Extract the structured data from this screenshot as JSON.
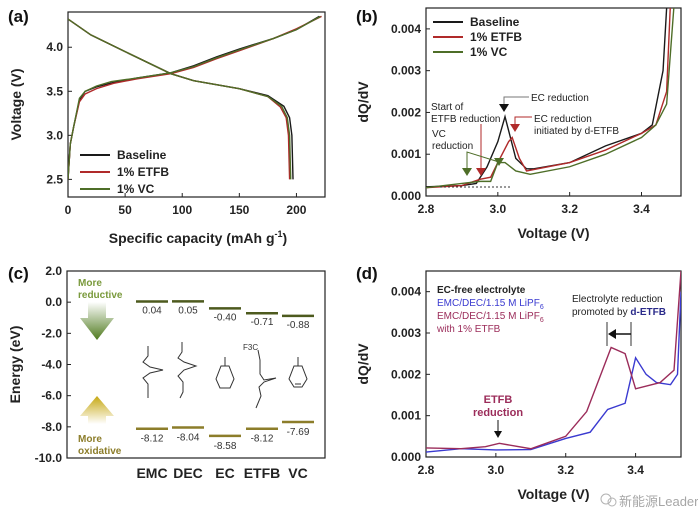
{
  "panel_labels": [
    "(a)",
    "(b)",
    "(c)",
    "(d)"
  ],
  "watermark": "新能源Leader",
  "chart_data": [
    {
      "type": "line",
      "panel": "(a)",
      "xlabel": "Specific capacity (mAh g-1)",
      "xlabel_main": "Specific capacity (mAh g",
      "xlabel_sup": "-1",
      "xlabel_end": ")",
      "ylabel": "Voltage (V)",
      "xlim": [
        0,
        225
      ],
      "ylim": [
        2.3,
        4.4
      ],
      "xticks": [
        0,
        50,
        100,
        150,
        200
      ],
      "yticks": [
        2.5,
        3.0,
        3.5,
        4.0
      ],
      "xtick_labels": [
        "0",
        "50",
        "100",
        "150",
        "200"
      ],
      "ytick_labels": [
        "2.5",
        "3.0",
        "3.5",
        "4.0"
      ],
      "legend": "bottom-left",
      "series": [
        {
          "name": "Baseline",
          "color": "#1a1a1a",
          "segments": [
            [
              [
                0,
                2.5
              ],
              [
                2,
                2.9
              ],
              [
                5,
                3.1
              ],
              [
                10,
                3.4
              ],
              [
                15,
                3.5
              ],
              [
                25,
                3.55
              ],
              [
                40,
                3.6
              ],
              [
                60,
                3.65
              ],
              [
                90,
                3.71
              ],
              [
                110,
                3.79
              ],
              [
                130,
                3.89
              ],
              [
                150,
                3.98
              ],
              [
                180,
                4.1
              ],
              [
                200,
                4.2
              ],
              [
                220,
                4.35
              ]
            ],
            [
              [
                0,
                4.32
              ],
              [
                20,
                4.14
              ],
              [
                50,
                3.95
              ],
              [
                90,
                3.7
              ],
              [
                110,
                3.62
              ],
              [
                150,
                3.53
              ],
              [
                175,
                3.45
              ],
              [
                189,
                3.33
              ],
              [
                194,
                3.2
              ],
              [
                196,
                3.0
              ],
              [
                197,
                2.5
              ]
            ]
          ]
        },
        {
          "name": "1% ETFB",
          "color": "#b02a2a",
          "segments": [
            [
              [
                0,
                2.5
              ],
              [
                2,
                2.9
              ],
              [
                5,
                3.1
              ],
              [
                10,
                3.38
              ],
              [
                15,
                3.47
              ],
              [
                25,
                3.53
              ],
              [
                40,
                3.59
              ],
              [
                60,
                3.64
              ],
              [
                90,
                3.7
              ],
              [
                110,
                3.77
              ],
              [
                130,
                3.87
              ],
              [
                150,
                3.96
              ],
              [
                180,
                4.1
              ],
              [
                200,
                4.21
              ],
              [
                222,
                4.35
              ]
            ],
            [
              [
                0,
                4.32
              ],
              [
                20,
                4.14
              ],
              [
                50,
                3.95
              ],
              [
                90,
                3.7
              ],
              [
                110,
                3.62
              ],
              [
                150,
                3.53
              ],
              [
                175,
                3.44
              ],
              [
                186,
                3.32
              ],
              [
                191,
                3.2
              ],
              [
                193,
                3.0
              ],
              [
                194,
                2.5
              ]
            ]
          ]
        },
        {
          "name": "1% VC",
          "color": "#4e6e28",
          "segments": [
            [
              [
                0,
                2.5
              ],
              [
                2,
                2.9
              ],
              [
                5,
                3.1
              ],
              [
                10,
                3.42
              ],
              [
                15,
                3.5
              ],
              [
                25,
                3.56
              ],
              [
                38,
                3.61
              ],
              [
                60,
                3.65
              ],
              [
                90,
                3.71
              ],
              [
                110,
                3.78
              ],
              [
                130,
                3.88
              ],
              [
                150,
                3.97
              ],
              [
                180,
                4.1
              ],
              [
                200,
                4.2
              ],
              [
                221,
                4.35
              ]
            ],
            [
              [
                0,
                4.32
              ],
              [
                20,
                4.14
              ],
              [
                50,
                3.95
              ],
              [
                90,
                3.7
              ],
              [
                110,
                3.62
              ],
              [
                150,
                3.53
              ],
              [
                175,
                3.44
              ],
              [
                187,
                3.33
              ],
              [
                192,
                3.2
              ],
              [
                194,
                3.0
              ],
              [
                195,
                2.5
              ]
            ]
          ]
        }
      ]
    },
    {
      "type": "line",
      "panel": "(b)",
      "xlabel": "Voltage (V)",
      "ylabel": "dQ/dV",
      "xlim": [
        2.8,
        3.51
      ],
      "ylim": [
        0,
        0.0045
      ],
      "xticks": [
        2.8,
        3.0,
        3.2,
        3.4
      ],
      "yticks": [
        0,
        0.001,
        0.002,
        0.003,
        0.004
      ],
      "xtick_labels": [
        "2.8",
        "3.0",
        "3.2",
        "3.4"
      ],
      "ytick_labels": [
        "0.000",
        "0.001",
        "0.002",
        "0.003",
        "0.004"
      ],
      "legend": "top-left",
      "series": [
        {
          "name": "Baseline",
          "color": "#1a1a1a",
          "segments": [
            [
              [
                2.8,
                0.00022
              ],
              [
                2.9,
                0.00025
              ],
              [
                2.94,
                0.0003
              ],
              [
                2.97,
                0.0007
              ],
              [
                3.0,
                0.0013
              ],
              [
                3.02,
                0.0019
              ],
              [
                3.05,
                0.0009
              ],
              [
                3.08,
                0.00065
              ],
              [
                3.1,
                0.00065
              ],
              [
                3.2,
                0.0008
              ],
              [
                3.3,
                0.0012
              ],
              [
                3.4,
                0.0015
              ],
              [
                3.43,
                0.0017
              ],
              [
                3.46,
                0.003
              ],
              [
                3.47,
                0.0045
              ]
            ]
          ]
        },
        {
          "name": "1% ETFB",
          "color": "#b02a2a",
          "segments": [
            [
              [
                2.8,
                0.0002
              ],
              [
                2.9,
                0.00025
              ],
              [
                2.95,
                0.0004
              ],
              [
                2.98,
                0.00045
              ],
              [
                3.0,
                0.0008
              ],
              [
                3.03,
                0.0013
              ],
              [
                3.04,
                0.0014
              ],
              [
                3.06,
                0.0009
              ],
              [
                3.08,
                0.0006
              ],
              [
                3.2,
                0.0008
              ],
              [
                3.3,
                0.0011
              ],
              [
                3.4,
                0.0015
              ],
              [
                3.44,
                0.0017
              ],
              [
                3.47,
                0.0025
              ],
              [
                3.48,
                0.0045
              ]
            ]
          ]
        },
        {
          "name": "1% VC",
          "color": "#4e6e28",
          "segments": [
            [
              [
                2.8,
                0.0002
              ],
              [
                2.9,
                0.0003
              ],
              [
                2.95,
                0.00035
              ],
              [
                2.98,
                0.00035
              ],
              [
                3.0,
                0.0008
              ],
              [
                3.02,
                0.0008
              ],
              [
                3.05,
                0.0006
              ],
              [
                3.09,
                0.00052
              ],
              [
                3.2,
                0.0007
              ],
              [
                3.3,
                0.001
              ],
              [
                3.4,
                0.0014
              ],
              [
                3.44,
                0.0017
              ],
              [
                3.47,
                0.0022
              ],
              [
                3.49,
                0.0045
              ]
            ]
          ]
        }
      ],
      "annotations": {
        "ec_reduction": "EC reduction",
        "start_of": "Start of",
        "etfb_reduction": "ETFB reduction",
        "ec_reduction_2": "EC reduction",
        "initiated_by": "initiated by d-ETFB",
        "vc": "VC",
        "reduction": "reduction"
      }
    },
    {
      "type": "bar",
      "panel": "(c)",
      "ylabel": "Energy (eV)",
      "ylim": [
        -10,
        2
      ],
      "yticks": [
        -10,
        -8,
        -6,
        -4,
        -2,
        0,
        2
      ],
      "ytick_labels": [
        "-10.0",
        "-8.0",
        "-6.0",
        "-4.0",
        "-2.0",
        "0.0",
        "2.0"
      ],
      "categories": [
        "EMC",
        "DEC",
        "EC",
        "ETFB",
        "VC"
      ],
      "lumo": [
        0.04,
        0.05,
        -0.4,
        -0.71,
        -0.88
      ],
      "lumo_labels": [
        "0.04",
        "0.05",
        "-0.40",
        "-0.71",
        "-0.88"
      ],
      "homo": [
        -8.12,
        -8.04,
        -8.58,
        -8.12,
        -7.69
      ],
      "homo_labels": [
        "-8.12",
        "-8.04",
        "-8.58",
        "-8.12",
        "-7.69"
      ],
      "lumo_color": "#4d5a1e",
      "homo_color": "#8c7d2a",
      "annotations": {
        "more": "More",
        "reductive": "reductive",
        "more2": "More",
        "oxidative": "oxidative",
        "f3c": "F3C"
      }
    },
    {
      "type": "line",
      "panel": "(d)",
      "xlabel": "Voltage (V)",
      "ylabel": "dQ/dV",
      "xlim": [
        2.8,
        3.53
      ],
      "ylim": [
        0,
        0.0045
      ],
      "xticks": [
        2.8,
        3.0,
        3.2,
        3.4
      ],
      "yticks": [
        0,
        0.001,
        0.002,
        0.003,
        0.004
      ],
      "xtick_labels": [
        "2.8",
        "3.0",
        "3.2",
        "3.4"
      ],
      "ytick_labels": [
        "0.000",
        "0.001",
        "0.002",
        "0.003",
        "0.004"
      ],
      "legend": "top-left",
      "legend_title": "EC-free electrolyte",
      "series": [
        {
          "name": "EMC/DEC/1.15 M LiPF6",
          "color": "#3a3ad0",
          "segments": [
            [
              [
                2.8,
                0.00012
              ],
              [
                2.9,
                0.0002
              ],
              [
                3.0,
                0.00017
              ],
              [
                3.1,
                0.00018
              ],
              [
                3.2,
                0.00045
              ],
              [
                3.27,
                0.0006
              ],
              [
                3.32,
                0.00115
              ],
              [
                3.37,
                0.0013
              ],
              [
                3.4,
                0.0024
              ],
              [
                3.43,
                0.002
              ],
              [
                3.46,
                0.0018
              ],
              [
                3.5,
                0.00175
              ],
              [
                3.52,
                0.002
              ],
              [
                3.53,
                0.004
              ]
            ]
          ]
        },
        {
          "name": "EMC/DEC/1.15 M LiPF6 with 1% ETFB",
          "color": "#9b2c5a",
          "segments": [
            [
              [
                2.8,
                0.00022
              ],
              [
                2.9,
                0.0002
              ],
              [
                2.97,
                0.00025
              ],
              [
                3.01,
                0.00033
              ],
              [
                3.1,
                0.0002
              ],
              [
                3.2,
                0.0005
              ],
              [
                3.26,
                0.0011
              ],
              [
                3.33,
                0.00265
              ],
              [
                3.37,
                0.0025
              ],
              [
                3.4,
                0.00165
              ],
              [
                3.47,
                0.0018
              ],
              [
                3.51,
                0.0021
              ],
              [
                3.53,
                0.0045
              ]
            ]
          ]
        }
      ],
      "legend_lines": [
        "EMC/DEC/1.15 M LiPF",
        "6",
        "EMC/DEC/1.15 M LiPF",
        "6",
        "with 1% ETFB"
      ],
      "annotations": {
        "electrolyte_reduction": "Electrolyte reduction",
        "promoted_by": "promoted by ",
        "d_etfb": "d-ETFB",
        "etfb": "ETFB",
        "reduction": "reduction"
      }
    }
  ]
}
